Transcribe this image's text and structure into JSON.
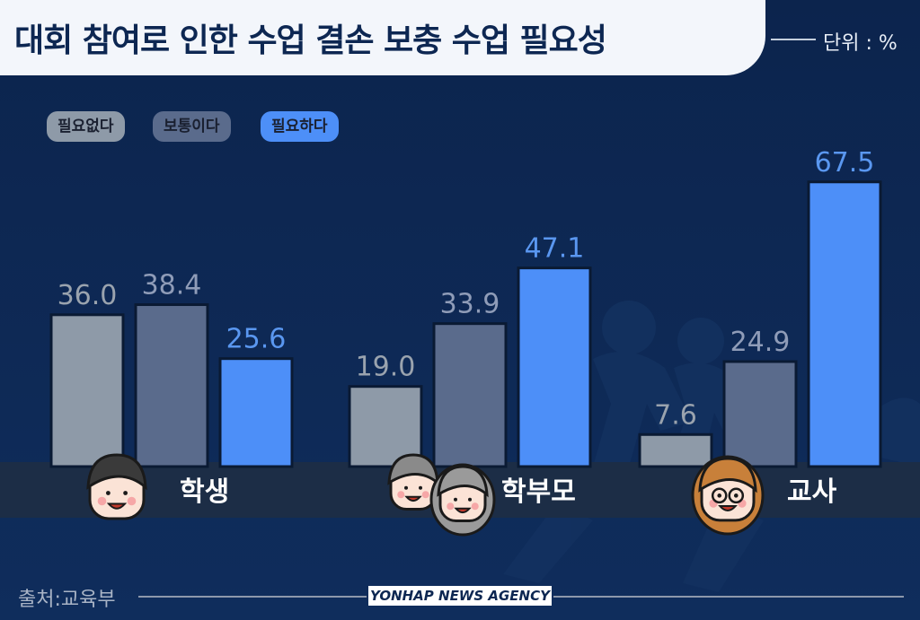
{
  "title": "대회 참여로 인한 수업 결손 보충 수업 필요성",
  "unit": "단위 : %",
  "legend": [
    {
      "label": "필요없다",
      "color": "#8e9aa8"
    },
    {
      "label": "보통이다",
      "color": "#5a6b8c"
    },
    {
      "label": "필요하다",
      "color": "#4d8ff8"
    }
  ],
  "source": "출처:교육부",
  "agency": "YONHAP NEWS AGENCY",
  "chart_data": {
    "type": "bar",
    "title": "대회 참여로 인한 수업 결손 보충 수업 필요성",
    "unit": "단위 : %",
    "categories": [
      "학생",
      "학부모",
      "교사"
    ],
    "series": [
      {
        "name": "필요없다",
        "values": [
          36.0,
          19.0,
          7.6
        ]
      },
      {
        "name": "보통이다",
        "values": [
          38.4,
          33.9,
          24.9
        ]
      },
      {
        "name": "필요하다",
        "values": [
          25.6,
          47.1,
          67.5
        ]
      }
    ],
    "ylim": [
      0,
      80
    ],
    "grid": false,
    "legend_position": "top-left"
  }
}
